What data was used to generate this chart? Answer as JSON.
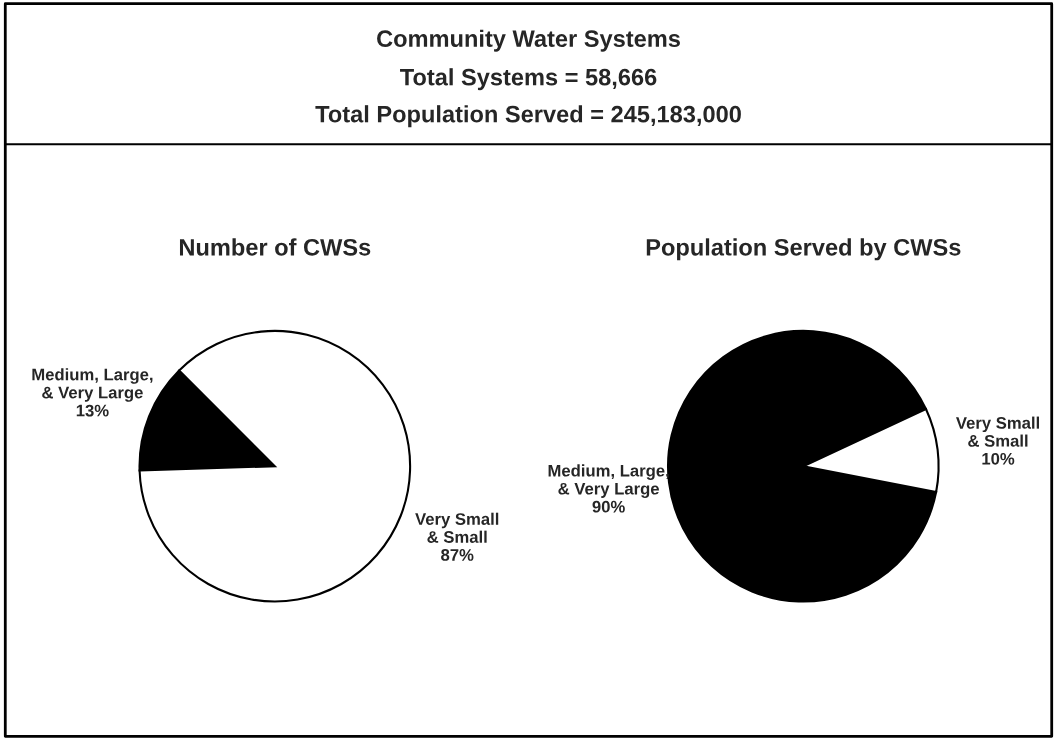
{
  "chart_data": [
    {
      "type": "other",
      "title": "Community Water Systems",
      "annotations": [
        "Total Systems = 58,666",
        "Total Population Served = 245,183,000"
      ]
    },
    {
      "type": "pie",
      "title": "Number of CWSs",
      "categories": [
        "Medium, Large,\n& Very Large",
        "Very Small\n& Small"
      ],
      "values": [
        13,
        87
      ],
      "colors": [
        "#000000",
        "#ffffff"
      ],
      "value_labels": [
        "13%",
        "87%"
      ]
    },
    {
      "type": "pie",
      "title": "Population Served by CWSs",
      "categories": [
        "Medium, Large,\n& Very Large",
        "Very Small\n& Small"
      ],
      "values": [
        90,
        10
      ],
      "colors": [
        "#000000",
        "#ffffff"
      ],
      "value_labels": [
        "90%",
        "10%"
      ]
    }
  ]
}
